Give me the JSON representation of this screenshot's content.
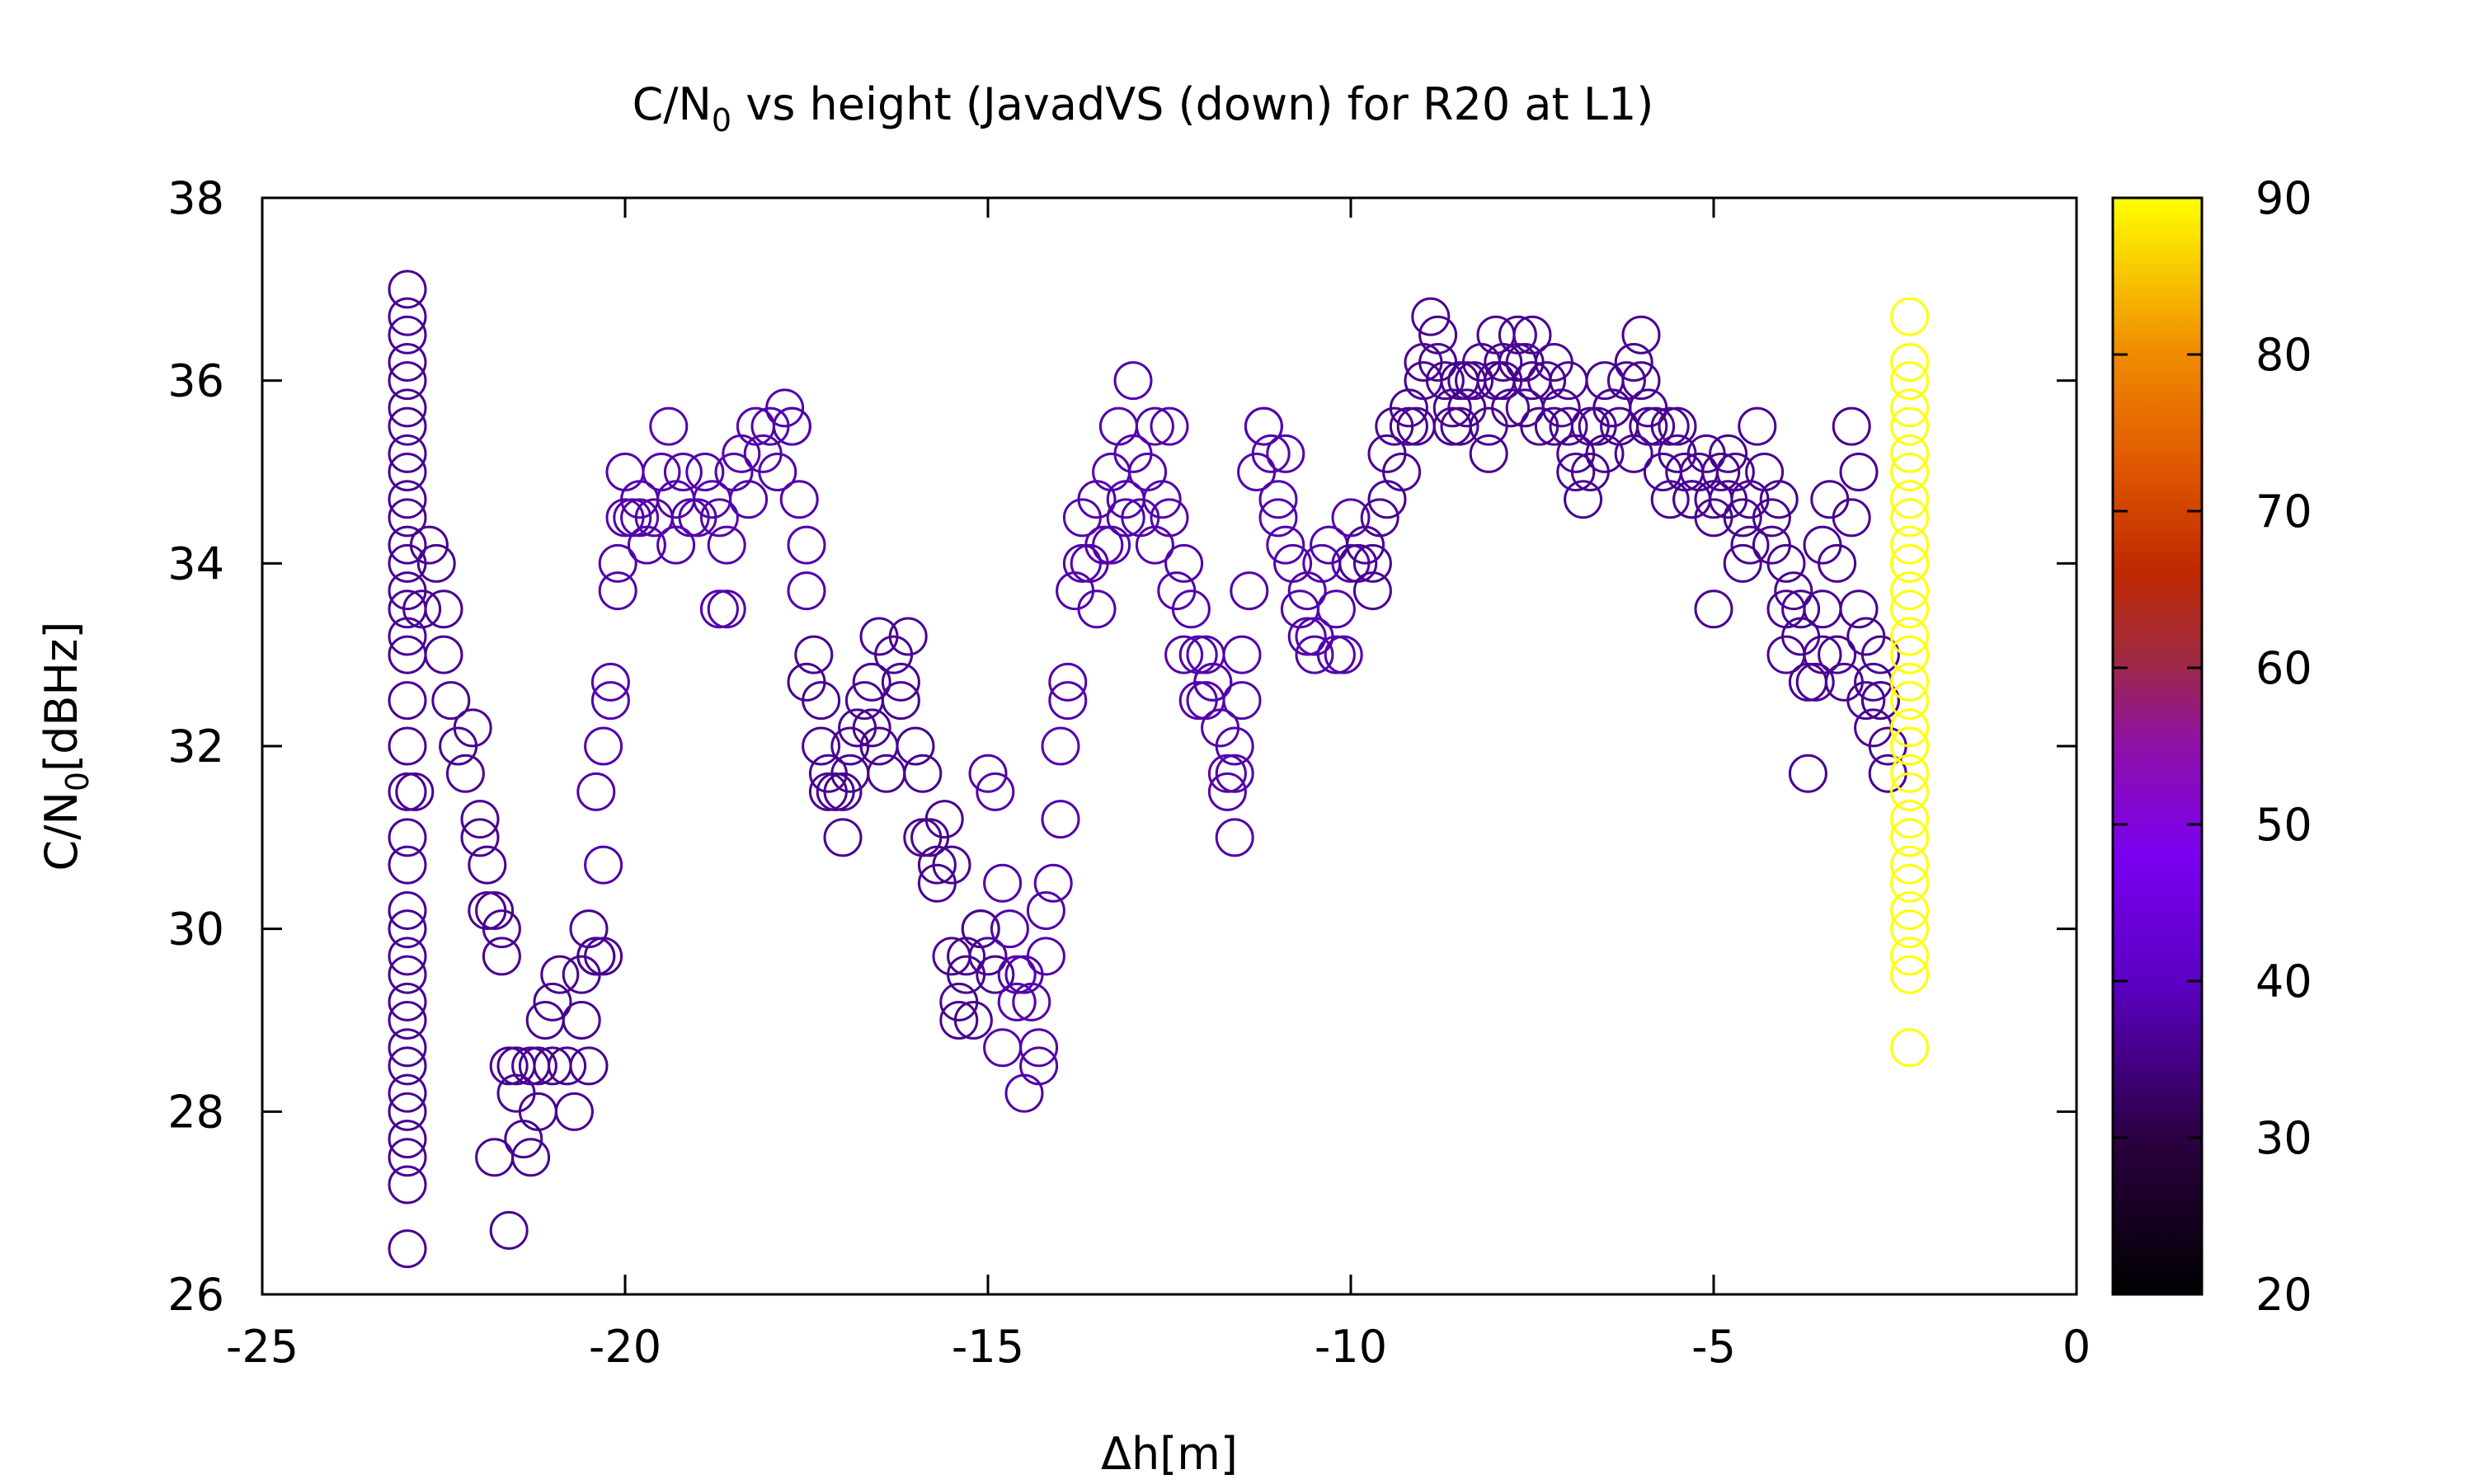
{
  "chart_data": {
    "type": "scatter",
    "title": "C/N",
    "title_sub": "0",
    "title_rest": " vs height (JavadVS (down) for R20 at L1)",
    "xlabel": "Δh[m]",
    "ylabel_main": "C/N",
    "ylabel_sub": "0",
    "ylabel_unit": "[dBHz]",
    "xlim": [
      -25,
      0
    ],
    "ylim": [
      26,
      38
    ],
    "xticks": [
      "-25",
      "-20",
      "-15",
      "-10",
      "-5",
      "0"
    ],
    "yticks": [
      "26",
      "28",
      "30",
      "32",
      "34",
      "36",
      "38"
    ],
    "colorbar": {
      "range": [
        20,
        90
      ],
      "ticks": [
        "20",
        "30",
        "40",
        "50",
        "60",
        "70",
        "80",
        "90"
      ],
      "palette": "gnuplot (black-purple-red-orange-yellow)"
    },
    "marker": "open circle",
    "grid": false,
    "legend": "none",
    "series": [
      {
        "x": [
          -23.0,
          -23.0,
          -23.0,
          -23.0,
          -23.0,
          -23.0,
          -23.0,
          -23.0,
          -23.0,
          -23.0,
          -23.0,
          -23.0,
          -23.0,
          -23.0,
          -23.0,
          -23.0,
          -23.0,
          -23.0,
          -23.0,
          -23.0,
          -23.0,
          -23.0,
          -23.0,
          -23.0,
          -23.0,
          -23.0,
          -23.0,
          -23.0,
          -23.0,
          -23.0,
          -23.0,
          -23.0,
          -23.0,
          -23.0,
          -23.0,
          -23.0
        ],
        "y": [
          37.0,
          36.7,
          36.5,
          36.2,
          36.0,
          35.7,
          35.5,
          35.2,
          35.0,
          34.7,
          34.5,
          34.2,
          34.0,
          33.7,
          33.5,
          33.2,
          32.5,
          32.0,
          31.5,
          31.0,
          30.7,
          30.2,
          30.0,
          29.7,
          29.5,
          29.2,
          29.0,
          28.7,
          28.5,
          28.2,
          28.0,
          27.7,
          27.5,
          27.2,
          26.5,
          33.0
        ],
        "c": 36
      },
      {
        "x": [
          -22.7,
          -22.5,
          -22.5,
          -22.4,
          -22.3,
          -22.2,
          -22.0,
          -22.0,
          -21.9,
          -21.8,
          -21.7,
          -21.7,
          -21.6,
          -21.5,
          -21.5,
          -21.4,
          -21.3,
          -21.3,
          -21.2,
          -21.1,
          -21.0,
          -21.0,
          -20.9,
          -20.8,
          -20.7,
          -20.6,
          -20.5,
          -20.4,
          -20.3,
          -22.9,
          -22.8,
          -22.6,
          -22.1,
          -21.9,
          -21.8,
          -21.6,
          -21.2,
          -20.6,
          -20.5,
          -20.4
        ],
        "y": [
          34.2,
          33.5,
          33.0,
          32.5,
          32.0,
          31.7,
          31.2,
          31.0,
          30.7,
          30.2,
          30.0,
          29.7,
          28.5,
          28.5,
          28.2,
          27.7,
          27.5,
          28.5,
          28.0,
          29.0,
          28.5,
          29.2,
          29.5,
          28.5,
          28.0,
          29.0,
          28.5,
          29.7,
          29.7,
          31.5,
          33.5,
          34.0,
          32.2,
          30.2,
          27.5,
          26.7,
          28.5,
          29.5,
          30.0,
          29.7
        ],
        "c": 36
      },
      {
        "x": [
          -20.3,
          -20.2,
          -20.2,
          -20.1,
          -20.0,
          -20.0,
          -19.9,
          -19.8,
          -19.7,
          -19.6,
          -19.5,
          -19.4,
          -19.3,
          -19.2,
          -19.1,
          -19.0,
          -18.9,
          -18.8,
          -18.7,
          -18.6,
          -18.5,
          -18.4,
          -18.3,
          -18.2,
          -18.1,
          -18.0,
          -17.9,
          -17.8,
          -17.7,
          -17.6,
          -20.4,
          -20.3,
          -20.1,
          -19.8,
          -19.3,
          -18.7,
          -18.6,
          -17.7,
          -17.5,
          -17.5
        ],
        "y": [
          30.7,
          32.5,
          32.7,
          33.7,
          34.5,
          35.0,
          34.5,
          34.7,
          34.2,
          34.5,
          35.0,
          35.5,
          34.7,
          35.0,
          34.5,
          34.5,
          35.0,
          34.7,
          34.5,
          33.5,
          35.0,
          35.2,
          34.7,
          35.5,
          35.2,
          35.5,
          35.0,
          35.7,
          35.5,
          34.7,
          31.5,
          32.0,
          34.0,
          34.5,
          34.2,
          33.5,
          34.2,
          35.5,
          34.2,
          33.7
        ],
        "c": 38
      },
      {
        "x": [
          -17.4,
          -17.3,
          -17.3,
          -17.2,
          -17.1,
          -17.0,
          -17.0,
          -16.9,
          -16.8,
          -16.7,
          -16.6,
          -16.5,
          -16.5,
          -16.4,
          -16.3,
          -16.2,
          -16.1,
          -16.0,
          -15.9,
          -15.8,
          -15.7,
          -15.6,
          -15.5,
          -15.5,
          -15.4,
          -15.3,
          -15.2,
          -15.1,
          -15.0,
          -14.9,
          -17.5,
          -17.2,
          -16.9,
          -16.6,
          -16.2,
          -15.9,
          -15.7,
          -15.4,
          -15.3,
          -15.1
        ],
        "y": [
          33.0,
          32.5,
          32.0,
          31.7,
          31.5,
          31.0,
          31.5,
          32.0,
          32.2,
          32.5,
          32.7,
          33.2,
          32.0,
          31.7,
          33.0,
          32.7,
          33.2,
          32.0,
          31.7,
          31.0,
          30.5,
          31.2,
          30.7,
          29.7,
          29.2,
          29.5,
          29.0,
          30.0,
          29.7,
          29.5,
          32.7,
          31.5,
          31.7,
          32.2,
          32.5,
          31.0,
          30.7,
          29.0,
          29.7,
          30.0
        ],
        "c": 36
      },
      {
        "x": [
          -14.9,
          -14.8,
          -14.7,
          -14.6,
          -14.5,
          -14.5,
          -14.4,
          -14.3,
          -14.2,
          -14.1,
          -14.0,
          -14.0,
          -13.9,
          -13.8,
          -13.7,
          -13.6,
          -13.5,
          -13.5,
          -13.4,
          -13.3,
          -13.2,
          -13.1,
          -13.0,
          -13.0,
          -12.9,
          -12.8,
          -12.7,
          -12.6,
          -12.5,
          -12.5,
          -15.0,
          -14.8,
          -14.6,
          -14.3,
          -14.2,
          -13.9,
          -13.7,
          -13.3,
          -13.1,
          -12.7
        ],
        "y": [
          31.5,
          30.5,
          30.0,
          29.5,
          28.2,
          29.5,
          29.2,
          28.5,
          29.7,
          30.5,
          31.2,
          32.0,
          32.5,
          33.7,
          34.5,
          34.0,
          33.5,
          34.7,
          34.2,
          35.0,
          35.5,
          34.7,
          36.0,
          35.2,
          34.5,
          35.0,
          35.5,
          34.7,
          35.5,
          34.5,
          31.7,
          28.7,
          29.2,
          28.7,
          30.2,
          32.7,
          34.0,
          34.2,
          34.5,
          34.2
        ],
        "c": 38
      },
      {
        "x": [
          -12.4,
          -12.3,
          -12.2,
          -12.1,
          -12.0,
          -12.0,
          -11.9,
          -11.8,
          -11.7,
          -11.6,
          -11.5,
          -11.5,
          -11.4,
          -11.3,
          -11.2,
          -11.1,
          -11.0,
          -11.0,
          -10.9,
          -10.8,
          -10.7,
          -10.6,
          -10.5,
          -10.5,
          -10.4,
          -10.3,
          -10.2,
          -10.1,
          -10.0,
          -10.0,
          -12.3,
          -12.1,
          -11.9,
          -11.7,
          -11.6,
          -11.6,
          -11.2,
          -10.9,
          -10.6,
          -10.2
        ],
        "y": [
          33.7,
          34.0,
          33.5,
          33.0,
          32.5,
          33.0,
          32.7,
          32.2,
          31.5,
          31.7,
          32.5,
          33.0,
          33.7,
          35.0,
          35.5,
          35.2,
          34.7,
          34.5,
          35.2,
          34.0,
          33.5,
          33.7,
          33.0,
          33.2,
          34.0,
          34.2,
          33.5,
          33.0,
          34.0,
          34.5,
          33.0,
          32.5,
          32.7,
          31.7,
          31.0,
          32.0,
          35.5,
          34.2,
          33.2,
          33.0
        ],
        "c": 38
      },
      {
        "x": [
          -9.9,
          -9.8,
          -9.7,
          -9.6,
          -9.5,
          -9.5,
          -9.4,
          -9.3,
          -9.2,
          -9.1,
          -9.0,
          -9.0,
          -8.9,
          -8.8,
          -8.7,
          -8.6,
          -8.5,
          -8.5,
          -8.4,
          -8.3,
          -8.2,
          -8.1,
          -8.0,
          -8.0,
          -7.9,
          -7.8,
          -7.7,
          -7.6,
          -7.5,
          -7.5,
          -9.7,
          -9.2,
          -8.8,
          -8.6,
          -8.4,
          -8.1,
          -7.9,
          -7.7,
          -7.6,
          -7.4
        ],
        "y": [
          34.0,
          34.2,
          33.7,
          34.5,
          34.7,
          35.2,
          35.5,
          35.0,
          35.7,
          35.5,
          36.0,
          36.2,
          36.7,
          36.5,
          36.0,
          35.7,
          35.5,
          36.0,
          35.7,
          36.0,
          36.2,
          35.5,
          36.0,
          36.5,
          36.2,
          35.7,
          36.5,
          36.2,
          36.0,
          36.5,
          34.0,
          35.5,
          36.2,
          35.5,
          36.0,
          35.2,
          36.0,
          36.2,
          35.7,
          35.5
        ],
        "c": 36
      },
      {
        "x": [
          -7.3,
          -7.2,
          -7.1,
          -7.0,
          -7.0,
          -6.9,
          -6.8,
          -6.7,
          -6.6,
          -6.5,
          -6.5,
          -6.4,
          -6.3,
          -6.2,
          -6.1,
          -6.0,
          -6.0,
          -5.9,
          -5.8,
          -5.7,
          -5.6,
          -5.5,
          -5.5,
          -5.4,
          -5.3,
          -5.2,
          -5.1,
          -5.0,
          -5.0,
          -4.9,
          -7.2,
          -6.9,
          -6.7,
          -6.4,
          -6.1,
          -5.9,
          -5.6,
          -5.3,
          -5.0,
          -4.8
        ],
        "y": [
          36.0,
          36.2,
          35.7,
          35.5,
          36.0,
          35.0,
          34.7,
          35.0,
          35.5,
          35.2,
          36.0,
          35.7,
          35.5,
          36.0,
          35.2,
          36.5,
          36.0,
          35.7,
          35.5,
          35.0,
          34.7,
          35.2,
          35.5,
          35.0,
          34.7,
          35.0,
          35.2,
          34.7,
          34.5,
          35.0,
          35.5,
          35.2,
          35.5,
          35.7,
          36.2,
          35.5,
          35.5,
          34.7,
          33.5,
          34.7
        ],
        "c": 36
      },
      {
        "x": [
          -4.8,
          -4.7,
          -4.6,
          -4.5,
          -4.5,
          -4.4,
          -4.3,
          -4.2,
          -4.1,
          -4.0,
          -4.0,
          -3.9,
          -3.8,
          -3.7,
          -3.6,
          -3.5,
          -3.5,
          -3.4,
          -3.3,
          -3.2,
          -3.1,
          -3.0,
          -3.0,
          -2.9,
          -2.8,
          -2.8,
          -2.7,
          -2.7,
          -2.6,
          -2.6,
          -4.6,
          -4.2,
          -4.0,
          -3.8,
          -3.7,
          -3.5,
          -3.3,
          -3.1,
          -2.9,
          -2.7
        ],
        "y": [
          35.2,
          35.0,
          34.5,
          34.7,
          34.2,
          35.5,
          35.0,
          34.5,
          34.7,
          33.5,
          34.0,
          33.7,
          33.2,
          31.7,
          32.7,
          33.5,
          34.2,
          34.7,
          33.0,
          32.7,
          34.5,
          35.0,
          33.5,
          32.5,
          32.7,
          32.2,
          33.0,
          32.5,
          32.0,
          31.7,
          34.0,
          34.2,
          33.0,
          33.5,
          32.7,
          33.0,
          34.0,
          35.5,
          33.2,
          32.5
        ],
        "c": 36
      },
      {
        "x": [
          -2.3,
          -2.3,
          -2.3,
          -2.3,
          -2.3,
          -2.3,
          -2.3,
          -2.3,
          -2.3,
          -2.3,
          -2.3,
          -2.3,
          -2.3,
          -2.3,
          -2.3,
          -2.3,
          -2.3,
          -2.3,
          -2.3,
          -2.3,
          -2.3,
          -2.3,
          -2.3,
          -2.3,
          -2.3,
          -2.3,
          -2.3,
          -2.3,
          -2.3,
          -2.3,
          -2.3,
          -2.3,
          -2.3,
          -2.3
        ],
        "y": [
          36.7,
          36.2,
          36.0,
          35.7,
          35.5,
          35.2,
          35.0,
          34.7,
          34.5,
          34.2,
          34.0,
          33.7,
          33.5,
          33.2,
          33.0,
          32.7,
          32.5,
          32.2,
          32.0,
          31.7,
          31.5,
          31.2,
          31.0,
          30.7,
          30.5,
          30.2,
          30.0,
          29.7,
          29.5,
          28.7,
          34.0,
          33.0,
          32.0,
          31.0
        ],
        "c": 90
      }
    ]
  }
}
